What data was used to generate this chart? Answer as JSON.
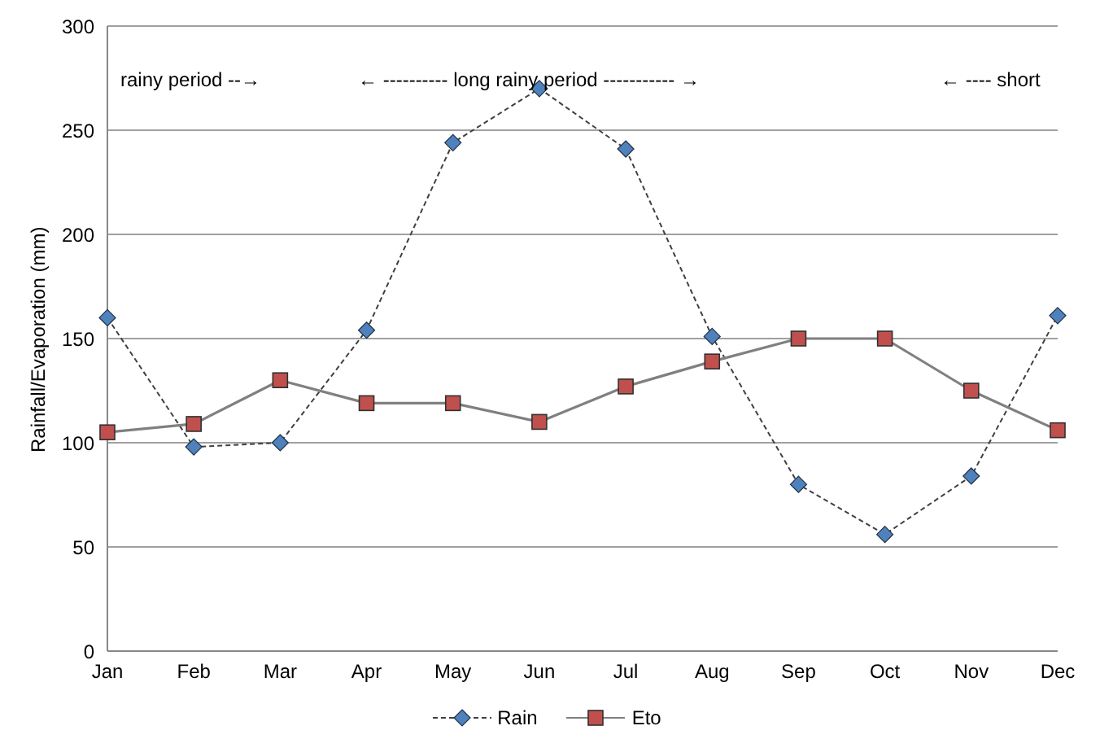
{
  "chart_data": {
    "type": "line",
    "ylabel": "Rainfall/Evaporation (mm)",
    "categories": [
      "Jan",
      "Feb",
      "Mar",
      "Apr",
      "May",
      "Jun",
      "Jul",
      "Aug",
      "Sep",
      "Oct",
      "Nov",
      "Dec"
    ],
    "series": [
      {
        "name": "Rain",
        "color": "#4f81bd",
        "marker": "diamond",
        "line_style": "dashed",
        "values": [
          160,
          98,
          100,
          154,
          244,
          270,
          241,
          151,
          80,
          56,
          84,
          161
        ]
      },
      {
        "name": "Eto",
        "color": "#c0504d",
        "marker": "square",
        "line_style": "solid",
        "values": [
          105,
          109,
          130,
          119,
          119,
          110,
          127,
          139,
          150,
          150,
          125,
          106
        ]
      }
    ],
    "ylim": [
      0,
      300
    ],
    "yticks": [
      0,
      50,
      100,
      150,
      200,
      250,
      300
    ],
    "grid": "y",
    "legend": "bottom",
    "annotations": [
      "rainy period --→",
      "← ---------- long rainy period ----------- →",
      "← ---- short"
    ]
  }
}
